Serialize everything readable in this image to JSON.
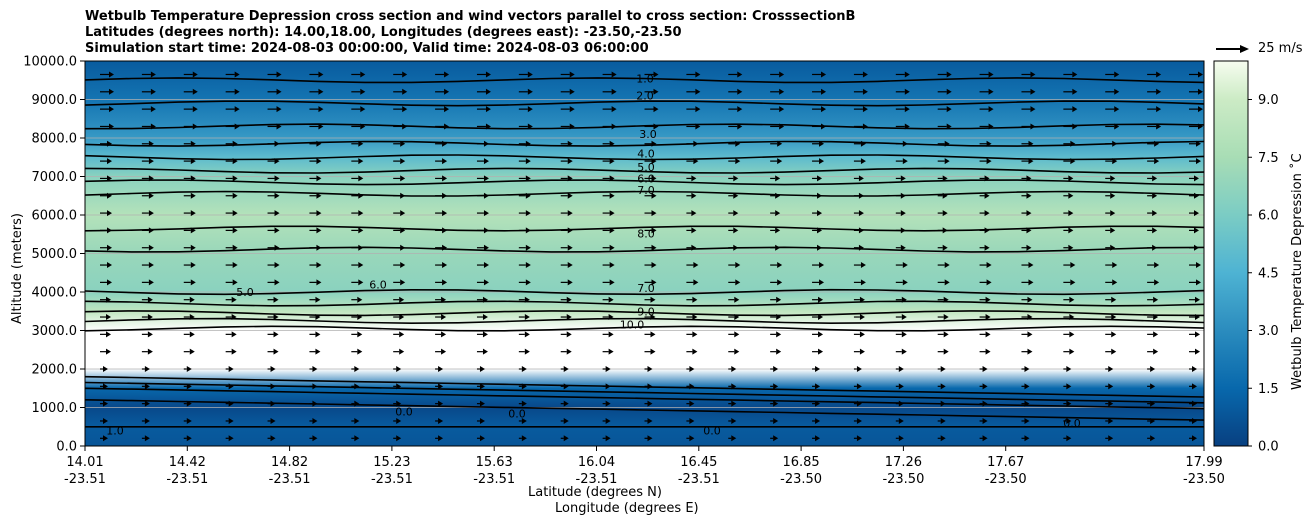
{
  "title_lines": [
    "Wetbulb Temperature Depression cross section and wind vectors parallel to cross section: CrosssectionB",
    "Latitudes (degrees north): 14.00,18.00, Longitudes (degrees east): -23.50,-23.50",
    "Simulation start time: 2024-08-03 00:00:00, Valid time: 2024-08-03 06:00:00"
  ],
  "reference_vector": {
    "label": "25 m/s"
  },
  "chart_data": {
    "type": "heatmap",
    "title": "Wetbulb Temperature Depression cross section and wind vectors parallel to cross section: CrosssectionB",
    "ylabel": "Altitude (meters)",
    "xlabel_lines": [
      "Latitude (degrees N)",
      "Longitude (degrees E)"
    ],
    "ylim": [
      0,
      10000
    ],
    "yticks": [
      "0.0",
      "1000.0",
      "2000.0",
      "3000.0",
      "4000.0",
      "5000.0",
      "6000.0",
      "7000.0",
      "8000.0",
      "9000.0",
      "10000.0"
    ],
    "xticks": [
      {
        "lat": "14.01",
        "lon": "-23.51"
      },
      {
        "lat": "14.42",
        "lon": "-23.51"
      },
      {
        "lat": "14.82",
        "lon": "-23.51"
      },
      {
        "lat": "15.23",
        "lon": "-23.51"
      },
      {
        "lat": "15.63",
        "lon": "-23.51"
      },
      {
        "lat": "16.04",
        "lon": "-23.51"
      },
      {
        "lat": "16.45",
        "lon": "-23.51"
      },
      {
        "lat": "16.85",
        "lon": "-23.50"
      },
      {
        "lat": "17.26",
        "lon": "-23.50"
      },
      {
        "lat": "17.67",
        "lon": "-23.50"
      },
      {
        "lat": "17.99",
        "lon": "-23.50"
      }
    ],
    "colorbar": {
      "label": "Wetbulb Temperature Depression ˚C",
      "range": [
        0,
        10
      ],
      "ticks": [
        "0.0",
        "1.5",
        "3.0",
        "4.5",
        "6.0",
        "7.5",
        "9.0"
      ],
      "colormap": "GnBu_r"
    },
    "grid": "horizontal",
    "contour_labels": [
      "1.0",
      "2.0",
      "3.0",
      "4.0",
      "5.0",
      "6.0",
      "7.0",
      "8.0",
      "9.0",
      "10.0",
      "0.0"
    ],
    "wind_vectors": "parallel to cross section, mostly eastward (rightward)",
    "profile": [
      {
        "alt": 0,
        "value": 0.8
      },
      {
        "alt": 500,
        "value": 1.0
      },
      {
        "alt": 1000,
        "value": 0.3
      },
      {
        "alt": 1500,
        "value": 1.5
      },
      {
        "alt": 2000,
        "value": 11
      },
      {
        "alt": 3000,
        "value": 10.2
      },
      {
        "alt": 3500,
        "value": 8.5
      },
      {
        "alt": 4000,
        "value": 6.5
      },
      {
        "alt": 5000,
        "value": 7.0
      },
      {
        "alt": 6000,
        "value": 8.0
      },
      {
        "alt": 7000,
        "value": 6.5
      },
      {
        "alt": 7500,
        "value": 5.0
      },
      {
        "alt": 8000,
        "value": 3.5
      },
      {
        "alt": 9000,
        "value": 2.0
      },
      {
        "alt": 10000,
        "value": 1.0
      }
    ]
  }
}
